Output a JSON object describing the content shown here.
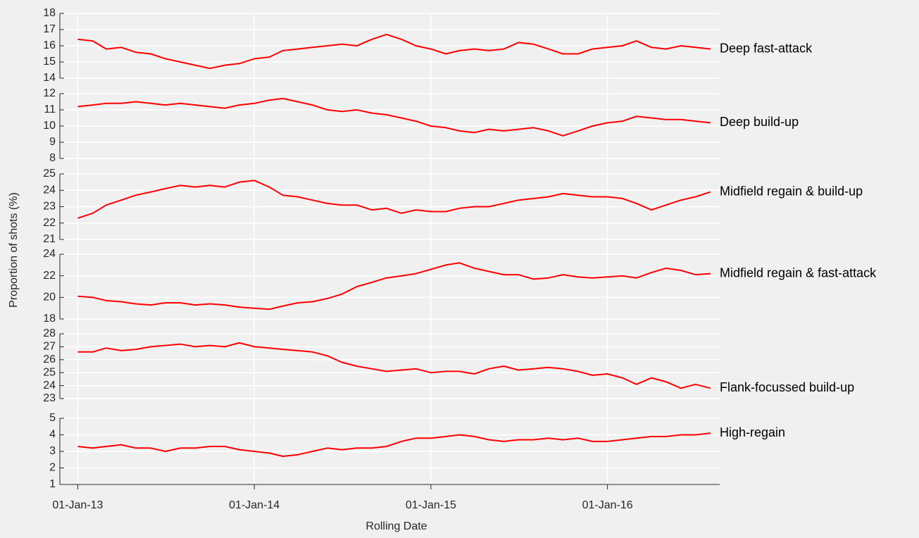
{
  "chart_data": {
    "type": "line",
    "xlabel": "Rolling Date",
    "ylabel": "Proportion of shots (%)",
    "color": "#ff0000",
    "grid": true,
    "xlim": [
      "2012-11-25",
      "2016-08-20"
    ],
    "xticks": [
      {
        "value": "2013-01-01",
        "label": "01-Jan-13"
      },
      {
        "value": "2014-01-01",
        "label": "01-Jan-14"
      },
      {
        "value": "2015-01-01",
        "label": "01-Jan-15"
      },
      {
        "value": "2016-01-01",
        "label": "01-Jan-16"
      }
    ],
    "x": [
      "2013-01-01",
      "2013-02-01",
      "2013-03-01",
      "2013-04-01",
      "2013-05-01",
      "2013-06-01",
      "2013-07-01",
      "2013-08-01",
      "2013-09-01",
      "2013-10-01",
      "2013-11-01",
      "2013-12-01",
      "2014-01-01",
      "2014-02-01",
      "2014-03-01",
      "2014-04-01",
      "2014-05-01",
      "2014-06-01",
      "2014-07-01",
      "2014-08-01",
      "2014-09-01",
      "2014-10-01",
      "2014-11-01",
      "2014-12-01",
      "2015-01-01",
      "2015-02-01",
      "2015-03-01",
      "2015-04-01",
      "2015-05-01",
      "2015-06-01",
      "2015-07-01",
      "2015-08-01",
      "2015-09-01",
      "2015-10-01",
      "2015-11-01",
      "2015-12-01",
      "2016-01-01",
      "2016-02-01",
      "2016-03-01",
      "2016-04-01",
      "2016-05-01",
      "2016-06-01",
      "2016-07-01",
      "2016-08-01"
    ],
    "panels": [
      {
        "name": "Deep fast-attack",
        "ylim": [
          14,
          18
        ],
        "yticks": [
          14,
          15,
          16,
          17,
          18
        ],
        "values": [
          16.4,
          16.3,
          15.8,
          15.9,
          15.6,
          15.5,
          15.2,
          15.0,
          14.8,
          14.6,
          14.8,
          14.9,
          15.2,
          15.3,
          15.7,
          15.8,
          15.9,
          16.0,
          16.1,
          16.0,
          16.4,
          16.7,
          16.4,
          16.0,
          15.8,
          15.5,
          15.7,
          15.8,
          15.7,
          15.8,
          16.2,
          16.1,
          15.8,
          15.5,
          15.5,
          15.8,
          15.9,
          16.0,
          16.3,
          15.9,
          15.8,
          16.0,
          15.9,
          15.8
        ]
      },
      {
        "name": "Deep build-up",
        "ylim": [
          8,
          12
        ],
        "yticks": [
          8,
          9,
          10,
          11,
          12
        ],
        "values": [
          11.2,
          11.3,
          11.4,
          11.4,
          11.5,
          11.4,
          11.3,
          11.4,
          11.3,
          11.2,
          11.1,
          11.3,
          11.4,
          11.6,
          11.7,
          11.5,
          11.3,
          11.0,
          10.9,
          11.0,
          10.8,
          10.7,
          10.5,
          10.3,
          10.0,
          9.9,
          9.7,
          9.6,
          9.8,
          9.7,
          9.8,
          9.9,
          9.7,
          9.4,
          9.7,
          10.0,
          10.2,
          10.3,
          10.6,
          10.5,
          10.4,
          10.4,
          10.3,
          10.2
        ]
      },
      {
        "name": "Midfield regain & build-up",
        "ylim": [
          21,
          25
        ],
        "yticks": [
          21,
          22,
          23,
          24,
          25
        ],
        "values": [
          22.3,
          22.6,
          23.1,
          23.4,
          23.7,
          23.9,
          24.1,
          24.3,
          24.2,
          24.3,
          24.2,
          24.5,
          24.6,
          24.2,
          23.7,
          23.6,
          23.4,
          23.2,
          23.1,
          23.1,
          22.8,
          22.9,
          22.6,
          22.8,
          22.7,
          22.7,
          22.9,
          23.0,
          23.0,
          23.2,
          23.4,
          23.5,
          23.6,
          23.8,
          23.7,
          23.6,
          23.6,
          23.5,
          23.2,
          22.8,
          23.1,
          23.4,
          23.6,
          23.9
        ]
      },
      {
        "name": "Midfield regain & fast-attack",
        "ylim": [
          18,
          24
        ],
        "yticks": [
          18,
          20,
          22,
          24
        ],
        "values": [
          20.1,
          20.0,
          19.7,
          19.6,
          19.4,
          19.3,
          19.5,
          19.5,
          19.3,
          19.4,
          19.3,
          19.1,
          19.0,
          18.9,
          19.2,
          19.5,
          19.6,
          19.9,
          20.3,
          21.0,
          21.4,
          21.8,
          22.0,
          22.2,
          22.6,
          23.0,
          23.2,
          22.7,
          22.4,
          22.1,
          22.1,
          21.7,
          21.8,
          22.1,
          21.9,
          21.8,
          21.9,
          22.0,
          21.8,
          22.3,
          22.7,
          22.5,
          22.1,
          22.2
        ]
      },
      {
        "name": "Flank-focussed build-up",
        "ylim": [
          23,
          28
        ],
        "yticks": [
          23,
          24,
          25,
          26,
          27,
          28
        ],
        "values": [
          26.6,
          26.6,
          26.9,
          26.7,
          26.8,
          27.0,
          27.1,
          27.2,
          27.0,
          27.1,
          27.0,
          27.3,
          27.0,
          26.9,
          26.8,
          26.7,
          26.6,
          26.3,
          25.8,
          25.5,
          25.3,
          25.1,
          25.2,
          25.3,
          25.0,
          25.1,
          25.1,
          24.9,
          25.3,
          25.5,
          25.2,
          25.3,
          25.4,
          25.3,
          25.1,
          24.8,
          24.9,
          24.6,
          24.1,
          24.6,
          24.3,
          23.8,
          24.1,
          23.8
        ]
      },
      {
        "name": "High-regain",
        "ylim": [
          1,
          5
        ],
        "yticks": [
          1,
          2,
          3,
          4,
          5
        ],
        "values": [
          3.3,
          3.2,
          3.3,
          3.4,
          3.2,
          3.2,
          3.0,
          3.2,
          3.2,
          3.3,
          3.3,
          3.1,
          3.0,
          2.9,
          2.7,
          2.8,
          3.0,
          3.2,
          3.1,
          3.2,
          3.2,
          3.3,
          3.6,
          3.8,
          3.8,
          3.9,
          4.0,
          3.9,
          3.7,
          3.6,
          3.7,
          3.7,
          3.8,
          3.7,
          3.8,
          3.6,
          3.6,
          3.7,
          3.8,
          3.9,
          3.9,
          4.0,
          4.0,
          4.1
        ]
      }
    ]
  }
}
